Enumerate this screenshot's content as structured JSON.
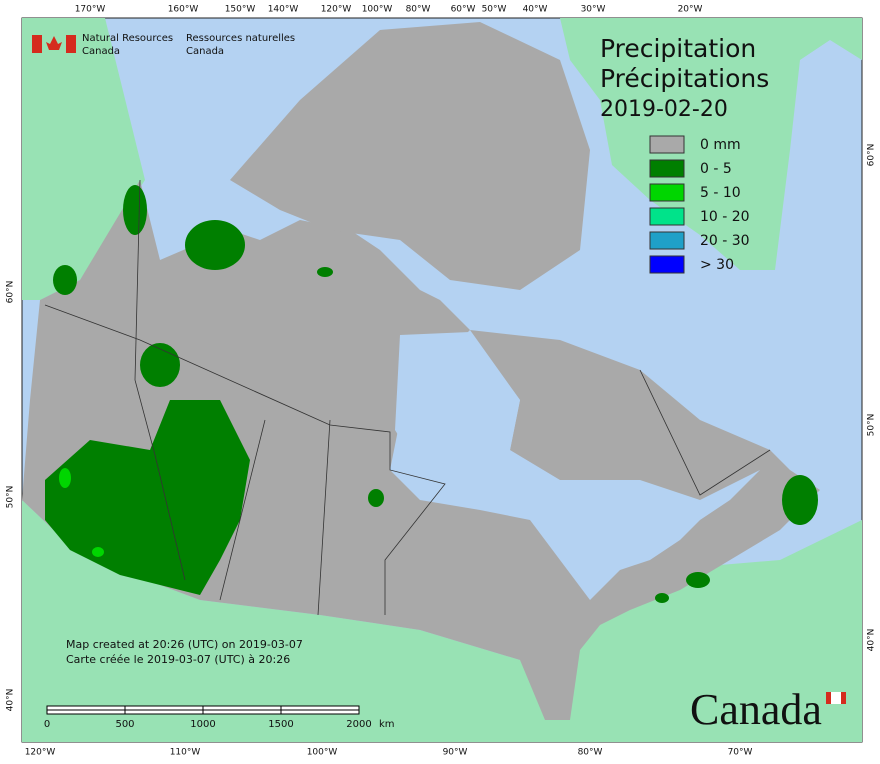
{
  "header": {
    "agency_en": [
      "Natural Resources",
      "Canada"
    ],
    "agency_fr": [
      "Ressources naturelles",
      "Canada"
    ]
  },
  "title": {
    "lines": [
      "Precipitation",
      "Précipitations"
    ],
    "date": "2019-02-20"
  },
  "legend": {
    "items": [
      {
        "label": "0 mm",
        "color": "#a9a9a9"
      },
      {
        "label": "0 - 5",
        "color": "#007f00"
      },
      {
        "label": "5 - 10",
        "color": "#00d600"
      },
      {
        "label": "10 - 20",
        "color": "#00e38a"
      },
      {
        "label": "20 - 30",
        "color": "#1fa0c8"
      },
      {
        "label": "> 30",
        "color": "#0000ff"
      }
    ]
  },
  "graticule": {
    "top": [
      "170°W",
      "160°W",
      "150°W",
      "140°W",
      "120°W",
      "100°W",
      "80°W",
      "60°W",
      "50°W",
      "40°W",
      "30°W",
      "20°W"
    ],
    "bottom": [
      "120°W",
      "110°W",
      "100°W",
      "90°W",
      "80°W",
      "70°W"
    ],
    "left": [
      "60°N",
      "50°N",
      "40°N"
    ],
    "right": [
      "60°N",
      "50°N",
      "40°N"
    ]
  },
  "footer": {
    "created_en": "Map created at 20:26 (UTC) on 2019-03-07",
    "created_fr": "Carte créée le 2019-03-07 (UTC) à 20:26"
  },
  "scale_bar": {
    "labels": [
      "0",
      "500",
      "1000",
      "1500",
      "2000"
    ],
    "unit": "km"
  },
  "wordmark": "Canada"
}
